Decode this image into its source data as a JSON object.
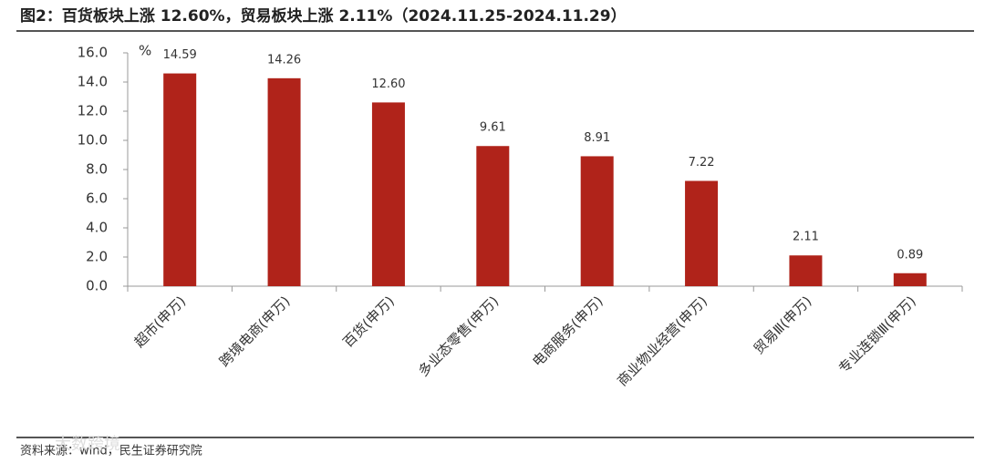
{
  "chart_data": {
    "type": "bar",
    "title": "图2：百货板块上涨 12.60%，贸易板块上涨 2.11%（2024.11.25-2024.11.29）",
    "unit_label": "%",
    "categories": [
      "超市(申万)",
      "跨境电商(申万)",
      "百货(申万)",
      "多业态零售(申万)",
      "电商服务(申万)",
      "商业物业经营(申万)",
      "贸易Ⅲ(申万)",
      "专业连锁Ⅲ(申万)"
    ],
    "values": [
      14.59,
      14.26,
      12.6,
      9.61,
      8.91,
      7.22,
      2.11,
      0.89
    ],
    "value_labels": [
      "14.59",
      "14.26",
      "12.60",
      "9.61",
      "8.91",
      "7.22",
      "2.11",
      "0.89"
    ],
    "color": "#b0231a",
    "ylim": [
      0,
      16
    ],
    "yticks": [
      {
        "value": 0,
        "label": "0.0"
      },
      {
        "value": 2,
        "label": "2.0"
      },
      {
        "value": 4,
        "label": "4.0"
      },
      {
        "value": 6,
        "label": "6.0"
      },
      {
        "value": 8,
        "label": "8.0"
      },
      {
        "value": 10,
        "label": "10.0"
      },
      {
        "value": 12,
        "label": "12.0"
      },
      {
        "value": 14,
        "label": "14.0"
      },
      {
        "value": 16,
        "label": "16.0"
      }
    ],
    "grid": false,
    "source": "资料来源：wind，民生证券研究院",
    "watermark": "大数跨境"
  }
}
